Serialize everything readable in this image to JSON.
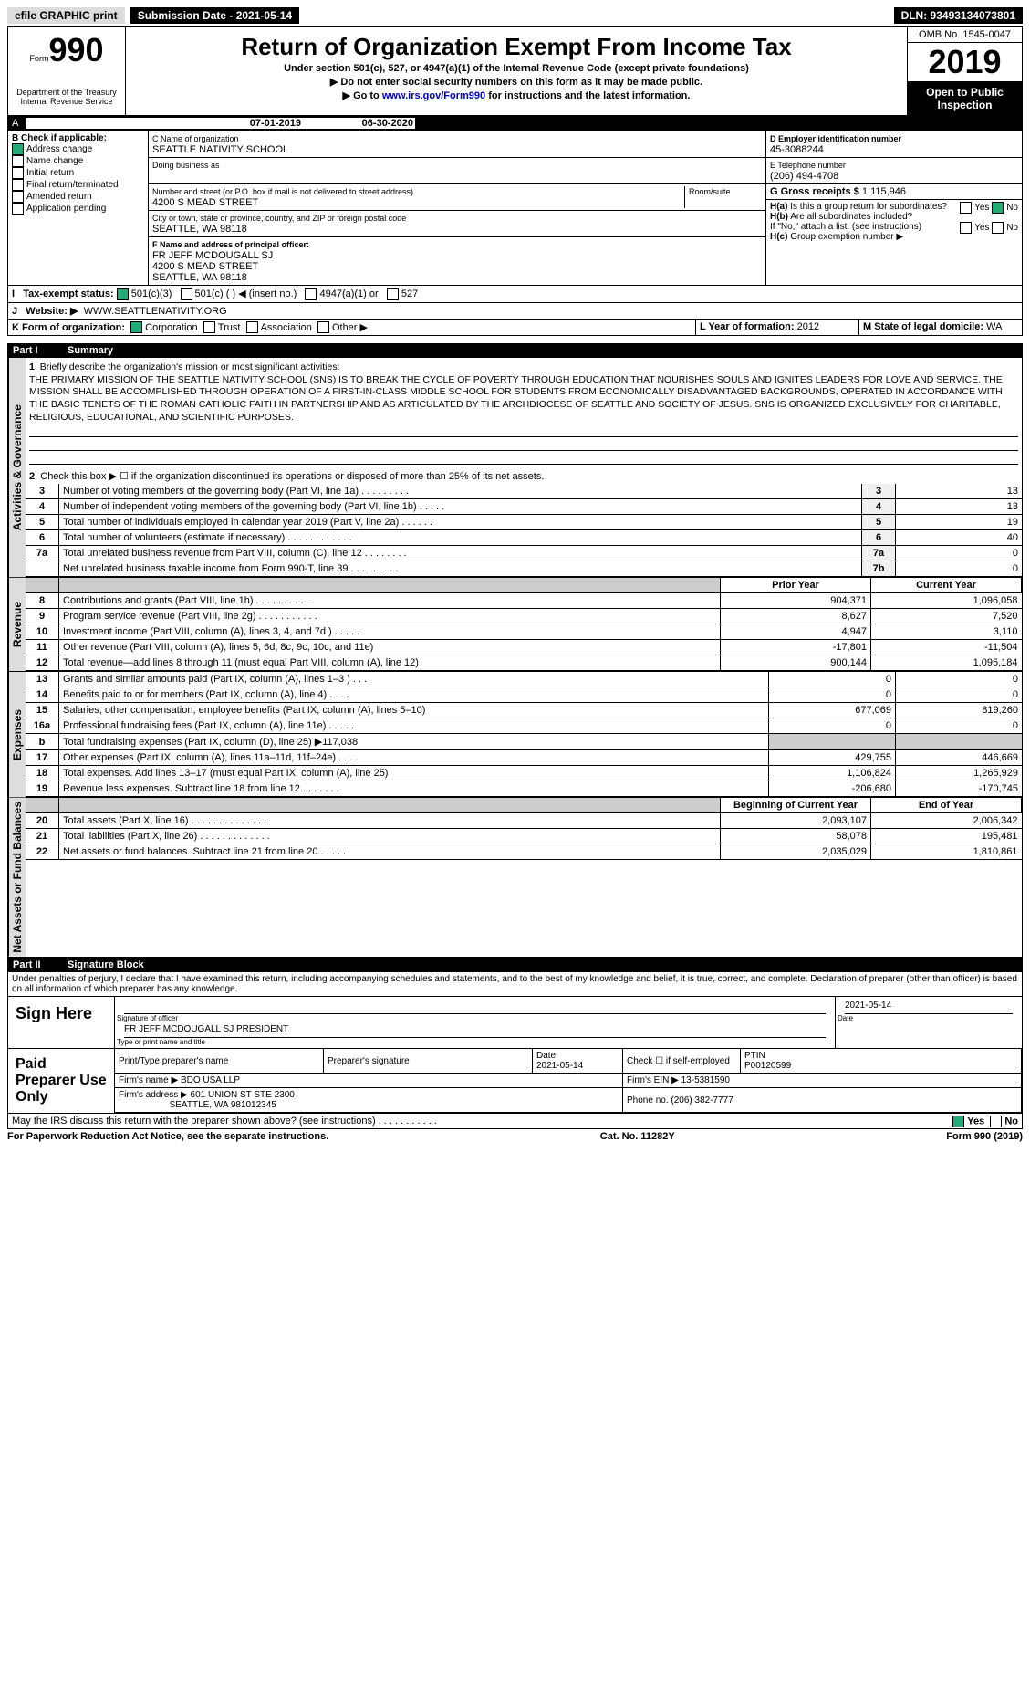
{
  "topbar": {
    "efile": "efile GRAPHIC print",
    "submission_label": "Submission Date - 2021-05-14",
    "dln_label": "DLN: 93493134073801"
  },
  "header": {
    "form_small": "Form",
    "form_num": "990",
    "dept1": "Department of the Treasury",
    "dept2": "Internal Revenue Service",
    "title": "Return of Organization Exempt From Income Tax",
    "sub1": "Under section 501(c), 527, or 4947(a)(1) of the Internal Revenue Code (except private foundations)",
    "sub2": "▶ Do not enter social security numbers on this form as it may be made public.",
    "sub3_pre": "▶ Go to ",
    "sub3_link": "www.irs.gov/Form990",
    "sub3_post": " for instructions and the latest information.",
    "omb": "OMB No. 1545-0047",
    "year": "2019",
    "open": "Open to Public Inspection"
  },
  "A": {
    "text_pre": "For the 2019 calendar year, or tax year beginning ",
    "begin": "07-01-2019",
    "mid": " , and ending ",
    "end": "06-30-2020"
  },
  "B": {
    "label": "B Check if applicable:",
    "address_change": "Address change",
    "name_change": "Name change",
    "initial": "Initial return",
    "final": "Final return/terminated",
    "amended": "Amended return",
    "app_pending": "Application pending"
  },
  "C": {
    "name_label": "C Name of organization",
    "name": "SEATTLE NATIVITY SCHOOL",
    "dba_label": "Doing business as",
    "street_label": "Number and street (or P.O. box if mail is not delivered to street address)",
    "street": "4200 S MEAD STREET",
    "room_label": "Room/suite",
    "city_label": "City or town, state or province, country, and ZIP or foreign postal code",
    "city": "SEATTLE, WA  98118"
  },
  "D": {
    "label": "D Employer identification number",
    "value": "45-3088244"
  },
  "E": {
    "label": "E Telephone number",
    "value": "(206) 494-4708"
  },
  "G": {
    "label": "G Gross receipts $",
    "value": "1,115,946"
  },
  "F": {
    "label": "F  Name and address of principal officer:",
    "name": "FR JEFF MCDOUGALL SJ",
    "street": "4200 S MEAD STREET",
    "city": "SEATTLE, WA  98118"
  },
  "H": {
    "a_label": "Is this a group return for subordinates?",
    "b_label": "Are all subordinates included?",
    "b_note": "If \"No,\" attach a list. (see instructions)",
    "c_label": "Group exemption number ▶",
    "yes": "Yes",
    "no": "No"
  },
  "I": {
    "label": "Tax-exempt status:",
    "a": "501(c)(3)",
    "b": "501(c) (  ) ◀ (insert no.)",
    "c": "4947(a)(1) or",
    "d": "527"
  },
  "J": {
    "label": "Website: ▶",
    "value": "WWW.SEATTLENATIVITY.ORG"
  },
  "K": {
    "label": "K Form of organization:",
    "a": "Corporation",
    "b": "Trust",
    "c": "Association",
    "d": "Other ▶"
  },
  "L": {
    "label": "L Year of formation:",
    "value": "2012"
  },
  "M": {
    "label": "M State of legal domicile:",
    "value": "WA"
  },
  "part1": {
    "num": "Part I",
    "title": "Summary"
  },
  "mission": {
    "q": "Briefly describe the organization's mission or most significant activities:",
    "text": "THE PRIMARY MISSION OF THE SEATTLE NATIVITY SCHOOL (SNS) IS TO BREAK THE CYCLE OF POVERTY THROUGH EDUCATION THAT NOURISHES SOULS AND IGNITES LEADERS FOR LOVE AND SERVICE. THE MISSION SHALL BE ACCOMPLISHED THROUGH OPERATION OF A FIRST-IN-CLASS MIDDLE SCHOOL FOR STUDENTS FROM ECONOMICALLY DISADVANTAGED BACKGROUNDS, OPERATED IN ACCORDANCE WITH THE BASIC TENETS OF THE ROMAN CATHOLIC FAITH IN PARTNERSHIP AND AS ARTICULATED BY THE ARCHDIOCESE OF SEATTLE AND SOCIETY OF JESUS. SNS IS ORGANIZED EXCLUSIVELY FOR CHARITABLE, RELIGIOUS, EDUCATIONAL, AND SCIENTIFIC PURPOSES."
  },
  "line2": "Check this box ▶ ☐  if the organization discontinued its operations or disposed of more than 25% of its net assets.",
  "lines_gov": [
    {
      "n": "3",
      "t": "Number of voting members of the governing body (Part VI, line 1a)   .   .   .   .   .   .   .   .   .",
      "b": "3",
      "v": "13"
    },
    {
      "n": "4",
      "t": "Number of independent voting members of the governing body (Part VI, line 1b)   .   .   .   .   .",
      "b": "4",
      "v": "13"
    },
    {
      "n": "5",
      "t": "Total number of individuals employed in calendar year 2019 (Part V, line 2a)   .   .   .   .   .   .",
      "b": "5",
      "v": "19"
    },
    {
      "n": "6",
      "t": "Total number of volunteers (estimate if necessary)   .   .   .   .   .   .   .   .   .   .   .   .",
      "b": "6",
      "v": "40"
    },
    {
      "n": "7a",
      "t": "Total unrelated business revenue from Part VIII, column (C), line 12   .   .   .   .   .   .   .   .",
      "b": "7a",
      "v": "0"
    },
    {
      "n": "",
      "t": "Net unrelated business taxable income from Form 990-T, line 39   .   .   .   .   .   .   .   .   .",
      "b": "7b",
      "v": "0"
    }
  ],
  "rev_header": {
    "prior": "Prior Year",
    "current": "Current Year"
  },
  "lines_rev": [
    {
      "n": "8",
      "t": "Contributions and grants (Part VIII, line 1h)   .   .   .   .   .   .   .   .   .   .   .",
      "p": "904,371",
      "c": "1,096,058"
    },
    {
      "n": "9",
      "t": "Program service revenue (Part VIII, line 2g)   .   .   .   .   .   .   .   .   .   .   .",
      "p": "8,627",
      "c": "7,520"
    },
    {
      "n": "10",
      "t": "Investment income (Part VIII, column (A), lines 3, 4, and 7d )   .   .   .   .   .",
      "p": "4,947",
      "c": "3,110"
    },
    {
      "n": "11",
      "t": "Other revenue (Part VIII, column (A), lines 5, 6d, 8c, 9c, 10c, and 11e)",
      "p": "-17,801",
      "c": "-11,504"
    },
    {
      "n": "12",
      "t": "Total revenue—add lines 8 through 11 (must equal Part VIII, column (A), line 12)",
      "p": "900,144",
      "c": "1,095,184"
    }
  ],
  "lines_exp": [
    {
      "n": "13",
      "t": "Grants and similar amounts paid (Part IX, column (A), lines 1–3 )   .   .   .",
      "p": "0",
      "c": "0"
    },
    {
      "n": "14",
      "t": "Benefits paid to or for members (Part IX, column (A), line 4)   .   .   .   .",
      "p": "0",
      "c": "0"
    },
    {
      "n": "15",
      "t": "Salaries, other compensation, employee benefits (Part IX, column (A), lines 5–10)",
      "p": "677,069",
      "c": "819,260"
    },
    {
      "n": "16a",
      "t": "Professional fundraising fees (Part IX, column (A), line 11e)   .   .   .   .   .",
      "p": "0",
      "c": "0"
    },
    {
      "n": "b",
      "t": "Total fundraising expenses (Part IX, column (D), line 25) ▶117,038",
      "p": "",
      "c": "",
      "shade": true
    },
    {
      "n": "17",
      "t": "Other expenses (Part IX, column (A), lines 11a–11d, 11f–24e)   .   .   .   .",
      "p": "429,755",
      "c": "446,669"
    },
    {
      "n": "18",
      "t": "Total expenses. Add lines 13–17 (must equal Part IX, column (A), line 25)",
      "p": "1,106,824",
      "c": "1,265,929"
    },
    {
      "n": "19",
      "t": "Revenue less expenses. Subtract line 18 from line 12   .   .   .   .   .   .   .",
      "p": "-206,680",
      "c": "-170,745"
    }
  ],
  "na_header": {
    "prior": "Beginning of Current Year",
    "current": "End of Year"
  },
  "lines_na": [
    {
      "n": "20",
      "t": "Total assets (Part X, line 16)   .   .   .   .   .   .   .   .   .   .   .   .   .   .",
      "p": "2,093,107",
      "c": "2,006,342"
    },
    {
      "n": "21",
      "t": "Total liabilities (Part X, line 26)   .   .   .   .   .   .   .   .   .   .   .   .   .",
      "p": "58,078",
      "c": "195,481"
    },
    {
      "n": "22",
      "t": "Net assets or fund balances. Subtract line 21 from line 20   .   .   .   .   .",
      "p": "2,035,029",
      "c": "1,810,861"
    }
  ],
  "tabs": {
    "gov": "Activities & Governance",
    "rev": "Revenue",
    "exp": "Expenses",
    "na": "Net Assets or Fund Balances"
  },
  "part2": {
    "num": "Part II",
    "title": "Signature Block"
  },
  "perjury": "Under penalties of perjury, I declare that I have examined this return, including accompanying schedules and statements, and to the best of my knowledge and belief, it is true, correct, and complete. Declaration of preparer (other than officer) is based on all information of which preparer has any knowledge.",
  "sign": {
    "here": "Sign Here",
    "sig_label": "Signature of officer",
    "date": "2021-05-14",
    "date_label": "Date",
    "name": "FR JEFF MCDOUGALL SJ PRESIDENT",
    "name_label": "Type or print name and title"
  },
  "paid": {
    "title": "Paid Preparer Use Only",
    "h1": "Print/Type preparer's name",
    "h2": "Preparer's signature",
    "h3": "Date",
    "h4": "Check ☐ if self-employed",
    "h5": "PTIN",
    "date": "2021-05-14",
    "ptin": "P00120599",
    "firm_label": "Firm's name    ▶",
    "firm": "BDO USA LLP",
    "ein_label": "Firm's EIN ▶",
    "ein": "13-5381590",
    "addr_label": "Firm's address ▶",
    "addr1": "601 UNION ST STE 2300",
    "addr2": "SEATTLE, WA  981012345",
    "phone_label": "Phone no.",
    "phone": "(206) 382-7777"
  },
  "discuss": {
    "q": "May the IRS discuss this return with the preparer shown above? (see instructions)   .   .   .   .   .   .   .   .   .   .   .",
    "yes": "Yes",
    "no": "No"
  },
  "footer": {
    "l": "For Paperwork Reduction Act Notice, see the separate instructions.",
    "m": "Cat. No. 11282Y",
    "r": "Form 990 (2019)"
  }
}
